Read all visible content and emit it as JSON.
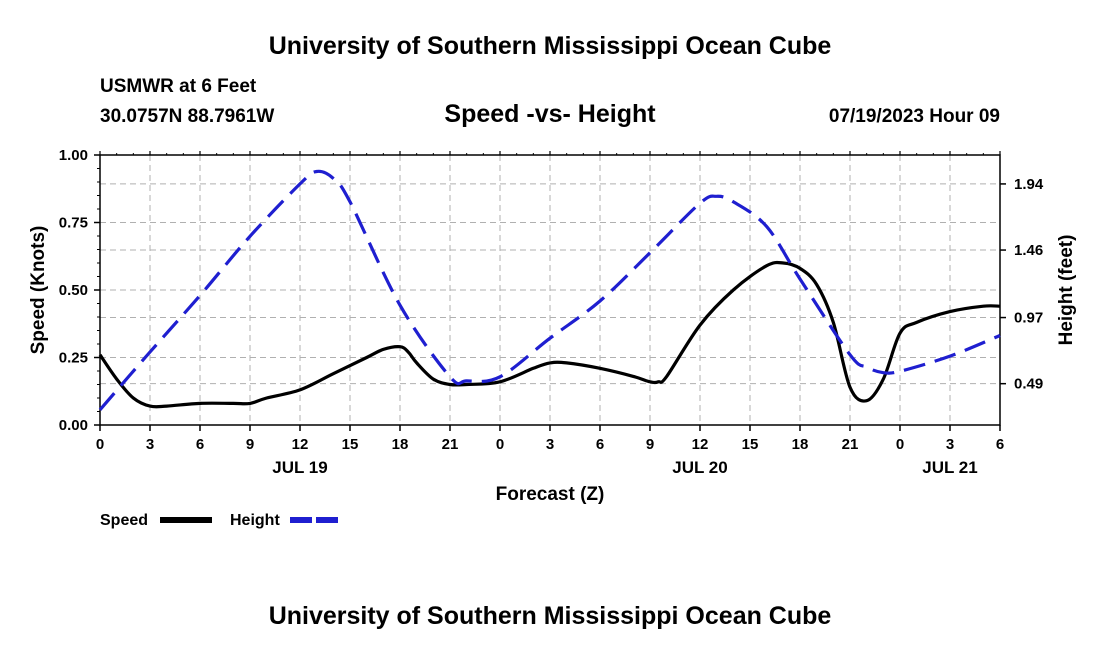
{
  "header": {
    "title": "University of Southern Mississippi Ocean Cube",
    "station": "USMWR at 6 Feet",
    "coords": "30.0757N  88.7961W",
    "chart_title": "Speed -vs- Height",
    "datetime": "07/19/2023 Hour 09"
  },
  "footer": {
    "title": "University of Southern Mississippi Ocean Cube"
  },
  "colors": {
    "speed": "#000000",
    "height": "#1f1fd0",
    "grid": "#b0b0b0"
  },
  "chart_data": {
    "type": "line",
    "title": "Speed -vs- Height",
    "xlabel": "Forecast (Z)",
    "ylabel": "Speed (Knots)",
    "y2label": "Height (feet)",
    "xlim": [
      0,
      54
    ],
    "ylim": [
      0,
      1.0
    ],
    "y2lim": [
      0.19,
      2.15
    ],
    "x_ticks": [
      0,
      3,
      6,
      9,
      12,
      15,
      18,
      21,
      24,
      27,
      30,
      33,
      36,
      39,
      42,
      45,
      48,
      51,
      54
    ],
    "x_tick_labels": [
      "0",
      "3",
      "6",
      "9",
      "12",
      "15",
      "18",
      "21",
      "0",
      "3",
      "6",
      "9",
      "12",
      "15",
      "18",
      "21",
      "0",
      "3",
      "6"
    ],
    "y_ticks": [
      0,
      0.25,
      0.5,
      0.75,
      1.0
    ],
    "y_tick_labels": [
      "0.00",
      "0.25",
      "0.50",
      "0.75",
      "1.00"
    ],
    "y2_ticks": [
      0.49,
      0.97,
      1.46,
      1.94
    ],
    "y2_tick_labels": [
      "0.49",
      "0.97",
      "1.46",
      "1.94"
    ],
    "day_labels": [
      {
        "x": 12,
        "label": "JUL 19"
      },
      {
        "x": 36,
        "label": "JUL 20"
      },
      {
        "x": 51,
        "label": "JUL 21"
      }
    ],
    "legend": [
      {
        "name": "Speed",
        "style": "solid"
      },
      {
        "name": "Height",
        "style": "dashed"
      }
    ],
    "series": [
      {
        "name": "Speed",
        "axis": "left",
        "x": [
          0,
          1,
          2,
          3,
          4,
          6,
          8,
          9,
          10,
          12,
          14,
          16,
          17,
          18,
          18.5,
          19,
          20,
          21,
          22,
          24,
          26,
          27,
          28,
          30,
          32,
          33,
          33.5,
          34,
          36,
          38,
          40,
          41,
          42,
          43,
          44,
          45,
          46,
          47,
          48,
          49,
          51,
          53,
          54
        ],
        "values": [
          0.26,
          0.17,
          0.1,
          0.07,
          0.07,
          0.08,
          0.08,
          0.08,
          0.1,
          0.13,
          0.19,
          0.25,
          0.28,
          0.29,
          0.27,
          0.23,
          0.17,
          0.15,
          0.15,
          0.16,
          0.21,
          0.23,
          0.23,
          0.21,
          0.18,
          0.16,
          0.16,
          0.18,
          0.37,
          0.5,
          0.59,
          0.6,
          0.58,
          0.52,
          0.38,
          0.14,
          0.09,
          0.17,
          0.34,
          0.38,
          0.42,
          0.44,
          0.44
        ]
      },
      {
        "name": "Height",
        "axis": "right",
        "x": [
          0,
          3,
          6,
          9,
          12,
          13,
          14,
          15,
          18,
          21,
          22,
          24,
          27,
          30,
          33,
          36,
          37,
          38,
          40,
          42,
          45,
          46,
          47,
          48,
          51,
          54
        ],
        "values": [
          0.3,
          0.72,
          1.13,
          1.56,
          1.94,
          2.03,
          1.98,
          1.81,
          1.06,
          0.54,
          0.51,
          0.54,
          0.82,
          1.09,
          1.44,
          1.8,
          1.85,
          1.81,
          1.63,
          1.25,
          0.7,
          0.61,
          0.57,
          0.58,
          0.69,
          0.84
        ]
      }
    ]
  }
}
